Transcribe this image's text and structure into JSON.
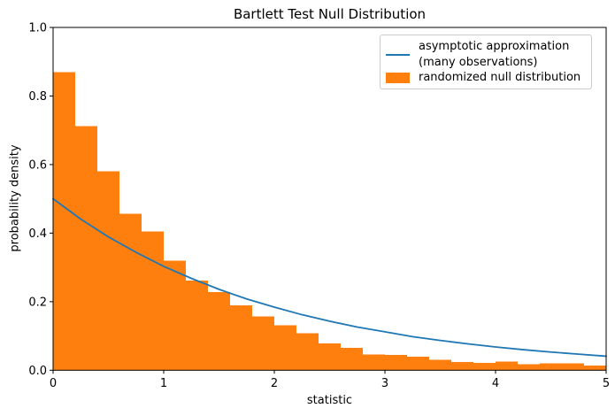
{
  "chart_data": {
    "type": "histogram+line",
    "title": "Bartlett Test Null Distribution",
    "xlabel": "statistic",
    "ylabel": "probability density",
    "xlim": [
      0,
      5
    ],
    "ylim": [
      0,
      1.0
    ],
    "xticks": [
      0,
      1,
      2,
      3,
      4,
      5
    ],
    "yticks": [
      0.0,
      0.2,
      0.4,
      0.6,
      0.8,
      1.0
    ],
    "grid": false,
    "legend_position": "upper right",
    "histogram": {
      "label": "randomized null distribution",
      "color": "#ff7f0e",
      "bin_start": 0,
      "bin_width": 0.2,
      "densities": [
        0.87,
        0.712,
        0.58,
        0.456,
        0.405,
        0.32,
        0.261,
        0.228,
        0.189,
        0.157,
        0.131,
        0.108,
        0.078,
        0.065,
        0.046,
        0.045,
        0.04,
        0.03,
        0.024,
        0.022,
        0.025,
        0.017,
        0.02,
        0.02,
        0.014
      ]
    },
    "line": {
      "label": "asymptotic approximation\n(many observations)",
      "color": "#1f77b4",
      "x": [
        0,
        0.25,
        0.5,
        0.75,
        1.0,
        1.25,
        1.5,
        1.75,
        2.0,
        2.25,
        2.5,
        2.75,
        3.0,
        3.25,
        3.5,
        3.75,
        4.0,
        4.25,
        4.5,
        4.75,
        5.0
      ],
      "y": [
        0.5,
        0.441,
        0.389,
        0.344,
        0.303,
        0.268,
        0.236,
        0.208,
        0.184,
        0.162,
        0.143,
        0.126,
        0.112,
        0.098,
        0.087,
        0.077,
        0.068,
        0.06,
        0.053,
        0.047,
        0.041
      ]
    },
    "colors": {
      "axes": "#000000",
      "text": "#000000",
      "legend_border": "#cccccc",
      "background": "#ffffff"
    }
  }
}
